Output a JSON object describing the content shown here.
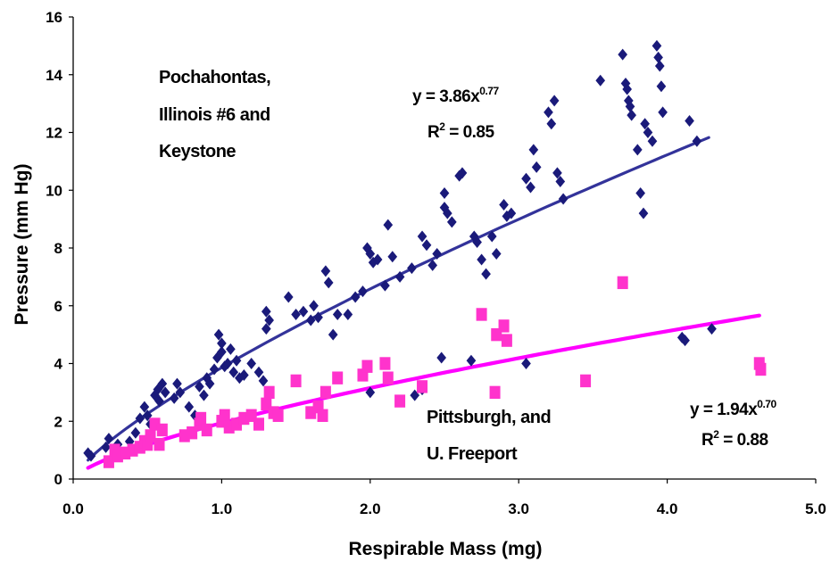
{
  "chart_data": {
    "type": "scatter",
    "xlabel": "Respirable Mass (mg)",
    "ylabel": "Pressure (mm Hg)",
    "xlim": [
      0,
      5
    ],
    "ylim": [
      0,
      16
    ],
    "x_ticks": [
      "0.0",
      "1.0",
      "2.0",
      "3.0",
      "4.0",
      "5.0"
    ],
    "y_ticks": [
      "0",
      "2",
      "4",
      "6",
      "8",
      "10",
      "12",
      "14",
      "16"
    ],
    "grid": false,
    "series": [
      {
        "label_lines": [
          "Pochahontas,",
          "Illinois #6 and",
          "Keystone"
        ],
        "marker": "diamond",
        "color": "#1a1a7a",
        "trend_color": "#33339a",
        "trendline": {
          "a": 3.86,
          "b": 0.77,
          "x_range": [
            0.1,
            4.28
          ]
        },
        "equation": {
          "prefix": "y = 3.86x",
          "exponent": "0.77",
          "r2_prefix": "R",
          "r2_sup": "2",
          "r2_value": " = 0.85"
        },
        "points": [
          [
            0.1,
            0.9
          ],
          [
            0.12,
            0.8
          ],
          [
            0.22,
            1.1
          ],
          [
            0.24,
            1.4
          ],
          [
            0.28,
            1.0
          ],
          [
            0.3,
            1.2
          ],
          [
            0.38,
            1.3
          ],
          [
            0.42,
            1.6
          ],
          [
            0.45,
            2.1
          ],
          [
            0.48,
            2.5
          ],
          [
            0.5,
            2.2
          ],
          [
            0.52,
            1.9
          ],
          [
            0.55,
            2.9
          ],
          [
            0.57,
            3.1
          ],
          [
            0.58,
            2.7
          ],
          [
            0.6,
            3.3
          ],
          [
            0.62,
            3.0
          ],
          [
            0.68,
            2.8
          ],
          [
            0.7,
            3.3
          ],
          [
            0.72,
            3.0
          ],
          [
            0.78,
            2.5
          ],
          [
            0.82,
            2.2
          ],
          [
            0.85,
            3.2
          ],
          [
            0.88,
            2.9
          ],
          [
            0.9,
            3.5
          ],
          [
            0.92,
            3.3
          ],
          [
            0.95,
            3.8
          ],
          [
            0.97,
            4.2
          ],
          [
            0.98,
            5.0
          ],
          [
            1.0,
            4.7
          ],
          [
            1.0,
            4.4
          ],
          [
            1.02,
            3.9
          ],
          [
            1.04,
            4.0
          ],
          [
            1.06,
            4.5
          ],
          [
            1.08,
            3.7
          ],
          [
            1.1,
            4.1
          ],
          [
            1.12,
            3.5
          ],
          [
            1.15,
            3.6
          ],
          [
            1.2,
            4.0
          ],
          [
            1.25,
            3.7
          ],
          [
            1.28,
            3.4
          ],
          [
            1.3,
            5.8
          ],
          [
            1.32,
            5.5
          ],
          [
            1.3,
            5.2
          ],
          [
            1.45,
            6.3
          ],
          [
            1.5,
            5.7
          ],
          [
            1.55,
            5.8
          ],
          [
            1.6,
            5.5
          ],
          [
            1.62,
            6.0
          ],
          [
            1.65,
            5.6
          ],
          [
            1.7,
            7.2
          ],
          [
            1.72,
            6.8
          ],
          [
            1.75,
            5.0
          ],
          [
            1.78,
            5.7
          ],
          [
            1.85,
            5.7
          ],
          [
            1.9,
            6.3
          ],
          [
            1.95,
            6.5
          ],
          [
            1.98,
            8.0
          ],
          [
            2.0,
            7.8
          ],
          [
            2.02,
            7.5
          ],
          [
            2.05,
            7.6
          ],
          [
            2.1,
            6.7
          ],
          [
            2.12,
            8.8
          ],
          [
            2.15,
            7.7
          ],
          [
            2.2,
            7.0
          ],
          [
            2.28,
            7.3
          ],
          [
            2.35,
            8.4
          ],
          [
            2.38,
            8.1
          ],
          [
            2.42,
            7.4
          ],
          [
            2.45,
            7.8
          ],
          [
            2.5,
            9.9
          ],
          [
            2.5,
            9.4
          ],
          [
            2.52,
            9.2
          ],
          [
            2.55,
            8.9
          ],
          [
            2.6,
            10.5
          ],
          [
            2.62,
            10.6
          ],
          [
            2.7,
            8.4
          ],
          [
            2.72,
            8.2
          ],
          [
            2.75,
            7.6
          ],
          [
            2.78,
            7.1
          ],
          [
            2.82,
            8.4
          ],
          [
            2.85,
            7.8
          ],
          [
            2.9,
            9.5
          ],
          [
            2.92,
            9.1
          ],
          [
            2.95,
            9.2
          ],
          [
            3.05,
            10.4
          ],
          [
            3.08,
            10.1
          ],
          [
            3.1,
            11.4
          ],
          [
            3.12,
            10.8
          ],
          [
            3.2,
            12.7
          ],
          [
            3.22,
            12.3
          ],
          [
            3.24,
            13.1
          ],
          [
            3.26,
            10.6
          ],
          [
            3.28,
            10.3
          ],
          [
            3.3,
            9.7
          ],
          [
            3.55,
            13.8
          ],
          [
            3.7,
            14.7
          ],
          [
            3.72,
            13.7
          ],
          [
            3.73,
            13.5
          ],
          [
            3.74,
            13.1
          ],
          [
            3.75,
            12.9
          ],
          [
            3.76,
            12.6
          ],
          [
            3.8,
            11.4
          ],
          [
            3.82,
            9.9
          ],
          [
            3.84,
            9.2
          ],
          [
            3.85,
            12.3
          ],
          [
            3.87,
            12.0
          ],
          [
            3.9,
            11.7
          ],
          [
            3.93,
            15.0
          ],
          [
            3.94,
            14.6
          ],
          [
            3.95,
            14.3
          ],
          [
            3.96,
            13.6
          ],
          [
            3.97,
            12.7
          ],
          [
            4.15,
            12.4
          ],
          [
            4.2,
            11.7
          ],
          [
            4.1,
            4.9
          ],
          [
            4.12,
            4.8
          ],
          [
            4.3,
            5.2
          ],
          [
            3.05,
            4.0
          ],
          [
            2.68,
            4.1
          ],
          [
            2.48,
            4.2
          ],
          [
            2.0,
            3.0
          ],
          [
            2.3,
            2.9
          ],
          [
            2.35,
            3.1
          ]
        ]
      },
      {
        "label_lines": [
          "Pittsburgh,  and",
          "U. Freeport"
        ],
        "marker": "square",
        "color": "#ff33cc",
        "trend_color": "#ff00ff",
        "trendline": {
          "a": 1.94,
          "b": 0.7,
          "x_range": [
            0.1,
            4.62
          ]
        },
        "equation": {
          "prefix": "y = 1.94x",
          "exponent": "0.70",
          "r2_prefix": "R",
          "r2_sup": "2",
          "r2_value": " = 0.88"
        },
        "points": [
          [
            0.24,
            0.6
          ],
          [
            0.28,
            1.0
          ],
          [
            0.3,
            0.8
          ],
          [
            0.35,
            0.9
          ],
          [
            0.4,
            1.0
          ],
          [
            0.45,
            1.1
          ],
          [
            0.48,
            1.3
          ],
          [
            0.5,
            1.2
          ],
          [
            0.52,
            1.5
          ],
          [
            0.55,
            1.9
          ],
          [
            0.58,
            1.2
          ],
          [
            0.6,
            1.7
          ],
          [
            0.75,
            1.5
          ],
          [
            0.8,
            1.6
          ],
          [
            0.85,
            1.9
          ],
          [
            0.86,
            2.1
          ],
          [
            0.9,
            1.7
          ],
          [
            1.0,
            2.0
          ],
          [
            1.02,
            2.2
          ],
          [
            1.05,
            1.8
          ],
          [
            1.1,
            1.9
          ],
          [
            1.15,
            2.1
          ],
          [
            1.2,
            2.2
          ],
          [
            1.25,
            1.9
          ],
          [
            1.3,
            2.6
          ],
          [
            1.32,
            3.0
          ],
          [
            1.35,
            2.3
          ],
          [
            1.38,
            2.2
          ],
          [
            1.5,
            3.4
          ],
          [
            1.6,
            2.3
          ],
          [
            1.65,
            2.5
          ],
          [
            1.68,
            2.2
          ],
          [
            1.7,
            3.0
          ],
          [
            1.78,
            3.5
          ],
          [
            1.95,
            3.6
          ],
          [
            1.98,
            3.9
          ],
          [
            2.1,
            4.0
          ],
          [
            2.12,
            3.5
          ],
          [
            2.2,
            2.7
          ],
          [
            2.35,
            3.2
          ],
          [
            2.75,
            5.7
          ],
          [
            2.85,
            5.0
          ],
          [
            2.9,
            5.3
          ],
          [
            2.92,
            4.8
          ],
          [
            2.84,
            3.0
          ],
          [
            3.45,
            3.4
          ],
          [
            3.7,
            6.8
          ],
          [
            4.62,
            4.0
          ],
          [
            4.63,
            3.8
          ]
        ]
      }
    ]
  }
}
